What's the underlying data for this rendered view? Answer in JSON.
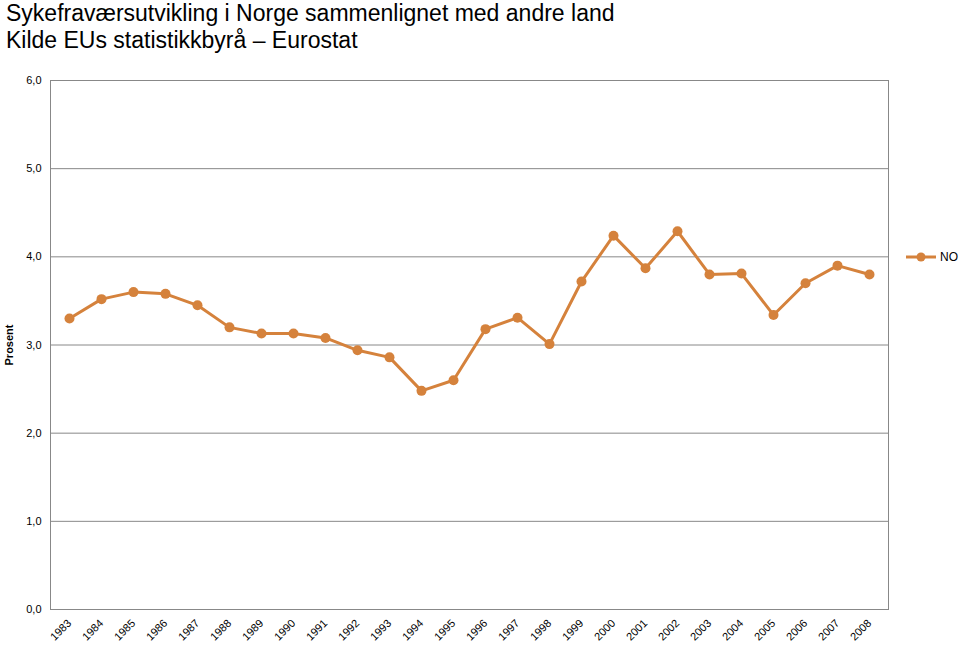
{
  "chart_data": {
    "type": "line",
    "title": "Sykefraværsutvikling i Norge sammenlignet med andre land",
    "subtitle": "Kilde EUs statistikkbyrå – Eurostat",
    "y_label": "Prosent",
    "categories": [
      "1983",
      "1984",
      "1985",
      "1986",
      "1987",
      "1988",
      "1989",
      "1990",
      "1991",
      "1992",
      "1993",
      "1994",
      "1995",
      "1996",
      "1997",
      "1998",
      "1999",
      "2000",
      "2001",
      "2002",
      "2003",
      "2004",
      "2005",
      "2006",
      "2007",
      "2008"
    ],
    "series": [
      {
        "name": "NO",
        "color": "#d5823c",
        "marker": "circle",
        "line_style": "solid",
        "values": [
          3.3,
          3.52,
          3.6,
          3.58,
          3.45,
          3.2,
          3.13,
          3.13,
          3.08,
          2.94,
          2.86,
          2.48,
          2.6,
          3.18,
          3.31,
          3.01,
          3.72,
          4.24,
          3.87,
          4.29,
          3.8,
          3.81,
          3.34,
          3.7,
          3.9,
          3.8
        ]
      }
    ],
    "ylim": [
      0,
      6
    ],
    "yticks": [
      {
        "value": 0,
        "label": "0,0"
      },
      {
        "value": 1,
        "label": "1,0"
      },
      {
        "value": 2,
        "label": "2,0"
      },
      {
        "value": 3,
        "label": "3,0"
      },
      {
        "value": 4,
        "label": "4,0"
      },
      {
        "value": 5,
        "label": "5,0"
      },
      {
        "value": 6,
        "label": "6,0"
      }
    ],
    "grid": true,
    "legend": "right"
  }
}
